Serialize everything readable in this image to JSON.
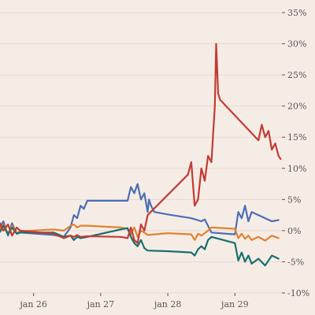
{
  "chart_data": {
    "type": "line",
    "title": "",
    "xlabel": "",
    "ylabel": "",
    "x_axis": {
      "domain": [
        0,
        4.2
      ],
      "ticks": [
        {
          "value": 0.5,
          "label": "jan 26"
        },
        {
          "value": 1.5,
          "label": "jan 27"
        },
        {
          "value": 2.5,
          "label": "jan 28"
        },
        {
          "value": 3.5,
          "label": "jan 29"
        }
      ]
    },
    "y_axis": {
      "position": "right",
      "domain": [
        -10,
        35
      ],
      "ticks": [
        {
          "value": 35,
          "label": "35%"
        },
        {
          "value": 30,
          "label": "30%"
        },
        {
          "value": 25,
          "label": "25%"
        },
        {
          "value": 20,
          "label": "20%"
        },
        {
          "value": 15,
          "label": "15%"
        },
        {
          "value": 10,
          "label": "10%"
        },
        {
          "value": 5,
          "label": "5%"
        },
        {
          "value": 0,
          "label": "0%"
        },
        {
          "value": -5,
          "label": "-5%"
        },
        {
          "value": -10,
          "label": "-10%"
        }
      ]
    },
    "grid": {
      "horizontal": true,
      "vertical": false
    },
    "legend": "none",
    "series": [
      {
        "color": "#4a6fb5",
        "points": [
          [
            0,
            0.5
          ],
          [
            0.05,
            1.5
          ],
          [
            0.12,
            -0.8
          ],
          [
            0.18,
            1.2
          ],
          [
            0.25,
            -0.5
          ],
          [
            0.3,
            -0.3
          ],
          [
            0.8,
            -0.7
          ],
          [
            0.95,
            -1
          ],
          [
            1.05,
            0.5
          ],
          [
            1.1,
            2.5
          ],
          [
            1.15,
            2
          ],
          [
            1.2,
            4
          ],
          [
            1.25,
            3.5
          ],
          [
            1.3,
            4.8
          ],
          [
            1.8,
            4.8
          ],
          [
            1.9,
            4.8
          ],
          [
            1.95,
            7
          ],
          [
            2.0,
            6
          ],
          [
            2.05,
            7.5
          ],
          [
            2.1,
            5
          ],
          [
            2.15,
            6
          ],
          [
            2.2,
            3
          ],
          [
            2.22,
            5
          ],
          [
            2.25,
            4
          ],
          [
            2.3,
            3
          ],
          [
            2.5,
            2.6
          ],
          [
            2.85,
            2
          ],
          [
            3.0,
            1.5
          ],
          [
            3.05,
            1.8
          ],
          [
            3.15,
            -0.3
          ],
          [
            3.5,
            -0.6
          ],
          [
            3.55,
            3
          ],
          [
            3.6,
            2
          ],
          [
            3.65,
            4
          ],
          [
            3.7,
            1.5
          ],
          [
            3.75,
            3
          ],
          [
            3.85,
            2.5
          ],
          [
            3.95,
            2
          ],
          [
            4.05,
            1.5
          ],
          [
            4.15,
            1.7
          ]
        ]
      },
      {
        "color": "#e0832e",
        "points": [
          [
            0,
            0.3
          ],
          [
            0.05,
            1
          ],
          [
            0.12,
            -0.5
          ],
          [
            0.18,
            0.8
          ],
          [
            0.25,
            -0.4
          ],
          [
            0.3,
            -0.1
          ],
          [
            0.8,
            0.2
          ],
          [
            0.95,
            0
          ],
          [
            1.05,
            0.8
          ],
          [
            1.1,
            1
          ],
          [
            1.15,
            0.5
          ],
          [
            1.2,
            0.8
          ],
          [
            1.3,
            0.8
          ],
          [
            1.8,
            0.5
          ],
          [
            1.9,
            0.3
          ],
          [
            1.95,
            -0.5
          ],
          [
            2.0,
            0.5
          ],
          [
            2.05,
            -1
          ],
          [
            2.1,
            0
          ],
          [
            2.15,
            -0.3
          ],
          [
            2.2,
            -0.7
          ],
          [
            2.5,
            -0.4
          ],
          [
            2.85,
            -0.6
          ],
          [
            2.9,
            -1.5
          ],
          [
            2.95,
            -0.5
          ],
          [
            3.0,
            -0.8
          ],
          [
            3.1,
            0
          ],
          [
            3.15,
            0.5
          ],
          [
            3.5,
            0.3
          ],
          [
            3.55,
            -1.2
          ],
          [
            3.6,
            -0.5
          ],
          [
            3.65,
            -1.3
          ],
          [
            3.7,
            -0.8
          ],
          [
            3.75,
            -1.5
          ],
          [
            3.85,
            -1
          ],
          [
            3.95,
            -1.6
          ],
          [
            4.05,
            -0.8
          ],
          [
            4.15,
            -1.2
          ]
        ]
      },
      {
        "color": "#17706e",
        "points": [
          [
            0,
            -0.2
          ],
          [
            0.05,
            0.8
          ],
          [
            0.12,
            -0.6
          ],
          [
            0.18,
            0.5
          ],
          [
            0.25,
            -0.5
          ],
          [
            0.3,
            -0.3
          ],
          [
            0.8,
            -0.3
          ],
          [
            0.95,
            -1
          ],
          [
            1.05,
            -0.8
          ],
          [
            1.1,
            -1.5
          ],
          [
            1.15,
            -1
          ],
          [
            1.2,
            -1.2
          ],
          [
            1.3,
            -1
          ],
          [
            1.8,
            0.2
          ],
          [
            1.9,
            0.4
          ],
          [
            1.95,
            -1
          ],
          [
            2.0,
            -2
          ],
          [
            2.05,
            -2.5
          ],
          [
            2.1,
            -1.5
          ],
          [
            2.15,
            -2.8
          ],
          [
            2.2,
            -3.2
          ],
          [
            2.5,
            -3.3
          ],
          [
            2.85,
            -3.5
          ],
          [
            2.9,
            -4
          ],
          [
            2.95,
            -3
          ],
          [
            3.0,
            -2.5
          ],
          [
            3.05,
            -3
          ],
          [
            3.1,
            -1.5
          ],
          [
            3.15,
            -1
          ],
          [
            3.5,
            -2
          ],
          [
            3.55,
            -4.8
          ],
          [
            3.6,
            -3.5
          ],
          [
            3.65,
            -5
          ],
          [
            3.7,
            -4
          ],
          [
            3.75,
            -5.3
          ],
          [
            3.85,
            -4.5
          ],
          [
            3.95,
            -5.6
          ],
          [
            4.05,
            -4
          ],
          [
            4.15,
            -4.5
          ]
        ]
      },
      {
        "color": "#c23b33",
        "points": [
          [
            0,
            1.2
          ],
          [
            0.05,
            0
          ],
          [
            0.12,
            1
          ],
          [
            0.18,
            -0.8
          ],
          [
            0.25,
            0.5
          ],
          [
            0.3,
            0
          ],
          [
            0.8,
            -0.5
          ],
          [
            0.95,
            -1.2
          ],
          [
            1.05,
            -0.8
          ],
          [
            1.1,
            -1
          ],
          [
            1.15,
            -0.7
          ],
          [
            1.2,
            -1
          ],
          [
            1.3,
            -0.9
          ],
          [
            1.8,
            -1
          ],
          [
            1.9,
            -1.2
          ],
          [
            1.95,
            0.5
          ],
          [
            2.0,
            -1.5
          ],
          [
            2.05,
            -2
          ],
          [
            2.1,
            1
          ],
          [
            2.15,
            0
          ],
          [
            2.2,
            2.5
          ],
          [
            2.8,
            9
          ],
          [
            2.85,
            11
          ],
          [
            2.9,
            4
          ],
          [
            2.95,
            5
          ],
          [
            3.0,
            10
          ],
          [
            3.05,
            8
          ],
          [
            3.1,
            12
          ],
          [
            3.15,
            11
          ],
          [
            3.2,
            20
          ],
          [
            3.22,
            30
          ],
          [
            3.25,
            22
          ],
          [
            3.28,
            21
          ],
          [
            3.85,
            14.5
          ],
          [
            3.9,
            17
          ],
          [
            3.95,
            15
          ],
          [
            4.0,
            16
          ],
          [
            4.05,
            13
          ],
          [
            4.1,
            14
          ],
          [
            4.15,
            12
          ],
          [
            4.18,
            11.5
          ]
        ]
      }
    ]
  }
}
